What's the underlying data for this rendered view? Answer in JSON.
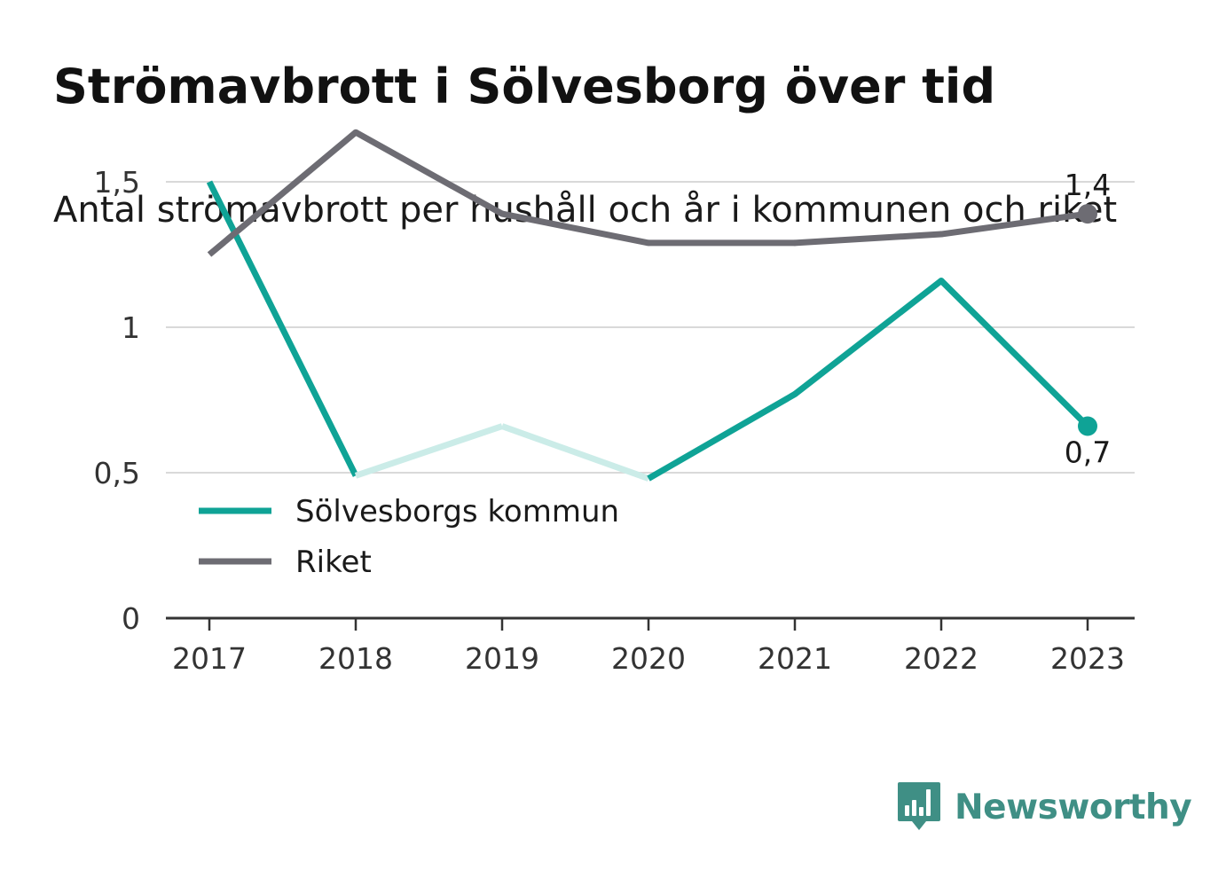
{
  "header": {
    "title": "Strömavbrott i Sölvesborg över tid",
    "subtitle": "Antal strömavbrott per hushåll och år i kommunen och riket"
  },
  "colors": {
    "kommun": "#0fa396",
    "kommun_faded": "#cbece8",
    "riket": "#6d6c73",
    "grid": "#d9d9d9",
    "axis": "#333333",
    "brand": "#3f8f85"
  },
  "chart_data": {
    "type": "line",
    "x": [
      "2017",
      "2018",
      "2019",
      "2020",
      "2021",
      "2022",
      "2023"
    ],
    "ylim": [
      0,
      1.7
    ],
    "yticks": [
      {
        "value": 0,
        "label": "0"
      },
      {
        "value": 0.5,
        "label": "0,5"
      },
      {
        "value": 1,
        "label": "1"
      },
      {
        "value": 1.5,
        "label": "1,5"
      }
    ],
    "grid": true,
    "legend_position": "center-left",
    "series": [
      {
        "name": "Sölvesborgs kommun",
        "color_key": "kommun",
        "values": [
          1.5,
          0.49,
          0.66,
          0.48,
          0.77,
          1.16,
          0.66
        ],
        "faded_segments": [
          [
            1,
            3
          ]
        ],
        "end_label": "0,7"
      },
      {
        "name": "Riket",
        "color_key": "riket",
        "values": [
          1.25,
          1.67,
          1.39,
          1.29,
          1.29,
          1.32,
          1.39
        ],
        "end_label": "1,4"
      }
    ]
  },
  "brand": {
    "name": "Newsworthy",
    "icon": "newsworthy-chart-icon"
  }
}
